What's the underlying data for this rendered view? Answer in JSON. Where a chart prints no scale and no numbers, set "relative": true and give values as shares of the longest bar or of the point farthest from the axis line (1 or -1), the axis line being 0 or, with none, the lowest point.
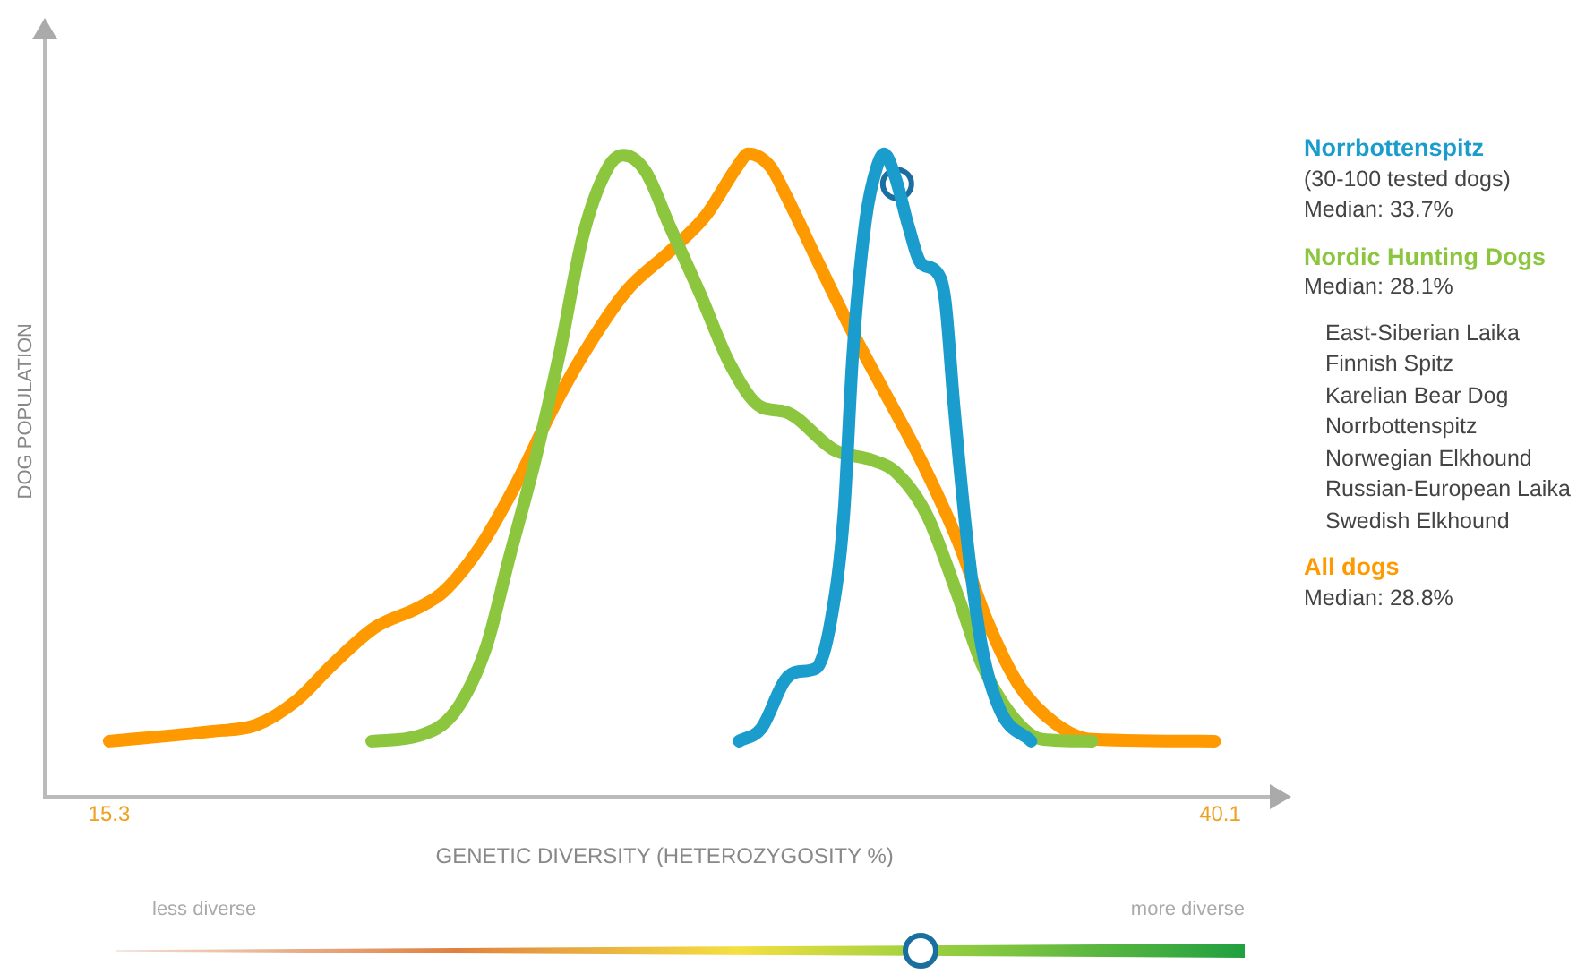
{
  "chart_data": {
    "type": "line",
    "relative": true,
    "xlabel": "GENETIC DIVERSITY (HETEROZYGOSITY %)",
    "ylabel": "DOG POPULATION",
    "xlim": [
      13.87,
      41.53
    ],
    "xticks": [
      15.3,
      40.1
    ],
    "grid": false,
    "legend": "right",
    "marker": "none",
    "line_style": "solid",
    "series": [
      {
        "name": "Norrbottenspitz",
        "color": "#1a9ccc",
        "x": [
          29.36,
          29.86,
          30.39,
          30.68,
          31.08,
          31.41,
          31.7,
          31.9,
          32.19,
          32.44,
          32.6,
          32.85,
          33.14,
          33.42,
          33.75,
          33.96,
          34.16,
          34.45,
          34.78,
          35.19,
          35.88
        ],
        "values": [
          0.087,
          0.107,
          0.182,
          0.195,
          0.2,
          0.274,
          0.439,
          0.688,
          0.898,
          0.98,
          1.0,
          0.963,
          0.888,
          0.83,
          0.818,
          0.773,
          0.608,
          0.401,
          0.234,
          0.135,
          0.087
        ]
      },
      {
        "name": "Nordic Hunting Dogs",
        "color": "#8cc63f",
        "x": [
          21.16,
          22.19,
          23.01,
          23.71,
          24.24,
          24.81,
          25.35,
          25.88,
          26.45,
          26.78,
          27.27,
          27.81,
          28.5,
          29.16,
          29.86,
          30.39,
          31.5,
          32.32,
          32.85,
          33.55,
          34.24,
          34.78,
          35.47,
          36.13,
          37.24
        ],
        "values": [
          0.087,
          0.095,
          0.132,
          0.232,
          0.374,
          0.524,
          0.688,
          0.873,
          0.98,
          0.998,
          0.973,
          0.888,
          0.781,
          0.673,
          0.606,
          0.599,
          0.539,
          0.524,
          0.506,
          0.439,
          0.314,
          0.207,
          0.125,
          0.09,
          0.087
        ]
      },
      {
        "name": "All dogs",
        "color": "#ff9900",
        "x": [
          15.3,
          17.56,
          18.58,
          19.48,
          20.3,
          21.24,
          22.19,
          22.76,
          23.58,
          24.4,
          25.22,
          26.04,
          26.86,
          27.81,
          28.63,
          29.32,
          29.57,
          30.06,
          30.39,
          31.08,
          31.78,
          32.6,
          33.42,
          34.24,
          34.9,
          35.6,
          36.41,
          37.24,
          39.98
        ],
        "values": [
          0.087,
          0.102,
          0.112,
          0.15,
          0.207,
          0.264,
          0.294,
          0.319,
          0.389,
          0.489,
          0.606,
          0.706,
          0.788,
          0.848,
          0.905,
          0.98,
          1.0,
          0.98,
          0.938,
          0.838,
          0.738,
          0.631,
          0.524,
          0.399,
          0.274,
          0.175,
          0.115,
          0.09,
          0.087
        ]
      },
      {
        "type": "scatter",
        "marker": "circle",
        "color": "#1a6fa0",
        "x": [
          32.89
        ],
        "values": [
          0.953
        ]
      }
    ],
    "annotations": [
      "(30-100 tested dogs)",
      "Median: 33.7%",
      "Median: 28.1%",
      "East-Siberian Laika",
      "Finnish Spitz",
      "Karelian Bear Dog",
      "Norrbottenspitz",
      "Norwegian Elkhound",
      "Russian-European Laika",
      "Swedish Elkhound",
      "Median: 28.8%",
      "less diverse",
      "more diverse"
    ]
  }
}
